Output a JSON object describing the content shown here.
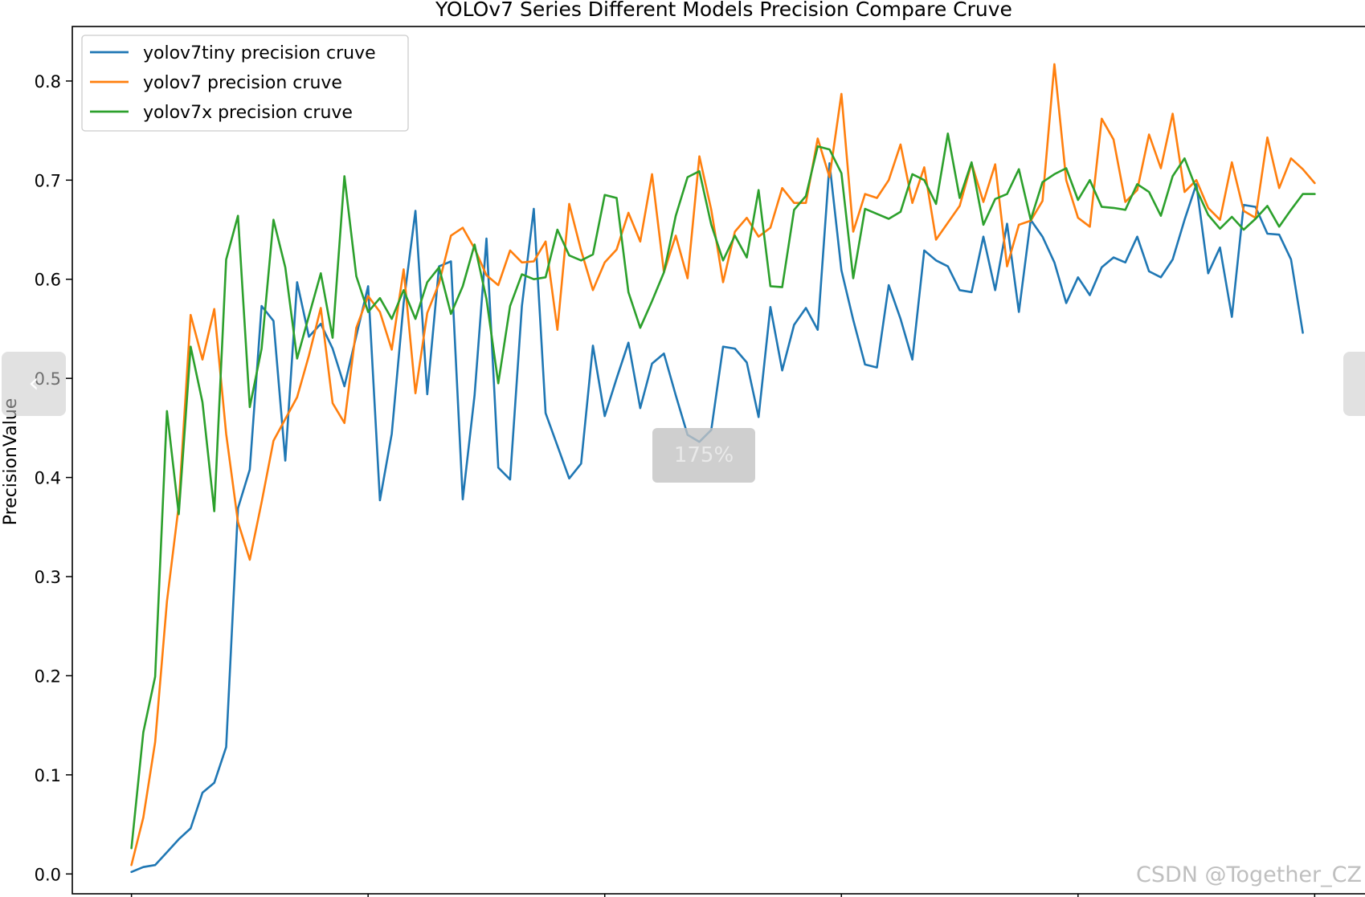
{
  "viewer": {
    "zoom_label": "175%",
    "prev_icon": "chevron-left-icon",
    "next_icon": "chevron-right-icon",
    "prev_glyph": "‹",
    "next_glyph": "›",
    "watermark": "CSDN @Together_CZ"
  },
  "colors": {
    "yolov7tiny": "#1f77b4",
    "yolov7": "#ff7f0e",
    "yolov7x": "#2ca02c"
  },
  "chart_data": {
    "type": "line",
    "title": "YOLOv7 Series Different Models Precision Compare Cruve",
    "xlabel": "",
    "ylabel": "PrecisionValue",
    "ylim": [
      -0.02,
      0.855
    ],
    "xlim": [
      -5,
      105
    ],
    "yticks": [
      "0.0",
      "0.1",
      "0.2",
      "0.3",
      "0.4",
      "0.5",
      "0.6",
      "0.7",
      "0.8"
    ],
    "xticks": [
      0,
      20,
      40,
      60,
      80,
      100
    ],
    "legend_position": "top-left",
    "grid": false,
    "x_start": 0,
    "series": [
      {
        "name": "yolov7tiny precision cruve",
        "color": "#1f77b4",
        "values": [
          0.002,
          0.007,
          0.009,
          0.022,
          0.035,
          0.046,
          0.082,
          0.092,
          0.128,
          0.369,
          0.408,
          0.573,
          0.558,
          0.417,
          0.597,
          0.542,
          0.555,
          0.53,
          0.492,
          0.543,
          0.593,
          0.377,
          0.444,
          0.576,
          0.669,
          0.484,
          0.613,
          0.618,
          0.378,
          0.483,
          0.641,
          0.41,
          0.398,
          0.573,
          0.671,
          0.465,
          0.432,
          0.399,
          0.414,
          0.533,
          0.462,
          0.5,
          0.536,
          0.47,
          0.515,
          0.525,
          0.483,
          0.443,
          0.436,
          0.448,
          0.532,
          0.53,
          0.516,
          0.461,
          0.572,
          0.508,
          0.554,
          0.571,
          0.549,
          0.717,
          0.609,
          0.559,
          0.514,
          0.511,
          0.594,
          0.56,
          0.519,
          0.629,
          0.619,
          0.613,
          0.589,
          0.587,
          0.643,
          0.589,
          0.656,
          0.567,
          0.66,
          0.643,
          0.617,
          0.576,
          0.602,
          0.584,
          0.612,
          0.622,
          0.617,
          0.643,
          0.608,
          0.602,
          0.62,
          0.66,
          0.696,
          0.606,
          0.632,
          0.562,
          0.675,
          0.673,
          0.646,
          0.645,
          0.62,
          0.546
        ]
      },
      {
        "name": "yolov7 precision cruve",
        "color": "#ff7f0e",
        "values": [
          0.009,
          0.057,
          0.133,
          0.275,
          0.372,
          0.564,
          0.519,
          0.57,
          0.444,
          0.355,
          0.317,
          0.375,
          0.437,
          0.459,
          0.481,
          0.523,
          0.571,
          0.475,
          0.455,
          0.551,
          0.583,
          0.567,
          0.529,
          0.61,
          0.485,
          0.566,
          0.596,
          0.644,
          0.652,
          0.631,
          0.604,
          0.594,
          0.629,
          0.617,
          0.618,
          0.638,
          0.549,
          0.676,
          0.629,
          0.589,
          0.617,
          0.63,
          0.667,
          0.638,
          0.706,
          0.607,
          0.644,
          0.601,
          0.724,
          0.67,
          0.597,
          0.648,
          0.662,
          0.643,
          0.652,
          0.692,
          0.677,
          0.677,
          0.742,
          0.703,
          0.787,
          0.648,
          0.686,
          0.682,
          0.7,
          0.736,
          0.677,
          0.713,
          0.64,
          0.657,
          0.674,
          0.717,
          0.678,
          0.716,
          0.613,
          0.655,
          0.659,
          0.679,
          0.817,
          0.7,
          0.662,
          0.653,
          0.762,
          0.741,
          0.678,
          0.69,
          0.746,
          0.712,
          0.767,
          0.688,
          0.7,
          0.672,
          0.66,
          0.718,
          0.669,
          0.662,
          0.743,
          0.692,
          0.722,
          0.711,
          0.697
        ]
      },
      {
        "name": "yolov7x precision cruve",
        "color": "#2ca02c",
        "values": [
          0.026,
          0.143,
          0.199,
          0.467,
          0.363,
          0.532,
          0.476,
          0.366,
          0.62,
          0.664,
          0.471,
          0.53,
          0.66,
          0.612,
          0.52,
          0.563,
          0.606,
          0.541,
          0.704,
          0.603,
          0.567,
          0.581,
          0.56,
          0.589,
          0.56,
          0.597,
          0.612,
          0.565,
          0.593,
          0.635,
          0.58,
          0.495,
          0.573,
          0.605,
          0.6,
          0.602,
          0.65,
          0.624,
          0.619,
          0.625,
          0.685,
          0.682,
          0.587,
          0.551,
          0.578,
          0.607,
          0.664,
          0.703,
          0.709,
          0.655,
          0.619,
          0.644,
          0.622,
          0.69,
          0.593,
          0.592,
          0.67,
          0.684,
          0.734,
          0.731,
          0.707,
          0.601,
          0.671,
          0.666,
          0.661,
          0.668,
          0.706,
          0.7,
          0.676,
          0.747,
          0.682,
          0.718,
          0.655,
          0.681,
          0.686,
          0.711,
          0.66,
          0.698,
          0.706,
          0.712,
          0.68,
          0.7,
          0.673,
          0.672,
          0.67,
          0.696,
          0.688,
          0.664,
          0.704,
          0.722,
          0.691,
          0.665,
          0.651,
          0.663,
          0.65,
          0.661,
          0.674,
          0.653,
          0.67,
          0.686,
          0.686
        ]
      }
    ]
  }
}
